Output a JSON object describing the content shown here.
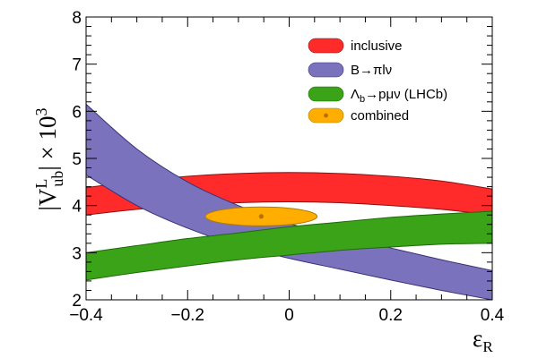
{
  "chart_data": {
    "type": "area",
    "title": "",
    "xlabel": "ε_R",
    "ylabel": "|V_ub^L| × 10^3",
    "xlim": [
      -0.4,
      0.4
    ],
    "ylim": [
      2,
      8
    ],
    "xticks": [
      -0.4,
      -0.2,
      0,
      0.2,
      0.4
    ],
    "xtick_labels": [
      "−0.4",
      "−0.2",
      "0",
      "0.2",
      "0.4"
    ],
    "yticks": [
      2,
      3,
      4,
      5,
      6,
      7,
      8
    ],
    "ytick_labels": [
      "2",
      "3",
      "4",
      "5",
      "6",
      "7",
      "8"
    ],
    "grid": false,
    "legend_position": "top-right",
    "series": [
      {
        "name": "inclusive",
        "legend_label": "inclusive",
        "color": "#ff2b2b",
        "x": [
          -0.4,
          -0.3,
          -0.2,
          -0.1,
          0.0,
          0.1,
          0.2,
          0.3,
          0.4
        ],
        "upper": [
          4.38,
          4.52,
          4.62,
          4.68,
          4.7,
          4.68,
          4.62,
          4.52,
          4.35
        ],
        "lower": [
          3.8,
          3.92,
          4.0,
          4.06,
          4.08,
          4.06,
          4.0,
          3.92,
          3.8
        ]
      },
      {
        "name": "B→πlν",
        "legend_label": "B→πlν",
        "color": "#7b72bd",
        "x": [
          -0.4,
          -0.3,
          -0.2,
          -0.1,
          0.0,
          0.1,
          0.2,
          0.3,
          0.4
        ],
        "upper": [
          6.15,
          5.2,
          4.5,
          4.0,
          3.62,
          3.35,
          3.1,
          2.85,
          2.62
        ],
        "lower": [
          4.65,
          4.0,
          3.52,
          3.15,
          2.88,
          2.65,
          2.42,
          2.2,
          2.0
        ]
      },
      {
        "name": "Λb→pμν (LHCb)",
        "legend_label_main": "Λ",
        "legend_label_sub": "b",
        "legend_label_rest": "→pμν (LHCb)",
        "color": "#3aa318",
        "x": [
          -0.4,
          -0.3,
          -0.2,
          -0.1,
          0.0,
          0.1,
          0.2,
          0.3,
          0.4
        ],
        "upper": [
          3.0,
          3.15,
          3.3,
          3.42,
          3.55,
          3.65,
          3.75,
          3.82,
          3.88
        ],
        "lower": [
          2.42,
          2.58,
          2.72,
          2.85,
          2.95,
          3.05,
          3.12,
          3.18,
          3.2
        ]
      },
      {
        "name": "combined",
        "legend_label": "combined",
        "color": "#ffae00",
        "center": [
          -0.055,
          3.77
        ],
        "semi_axis_x": 0.11,
        "semi_axis_y": 0.2
      }
    ]
  }
}
